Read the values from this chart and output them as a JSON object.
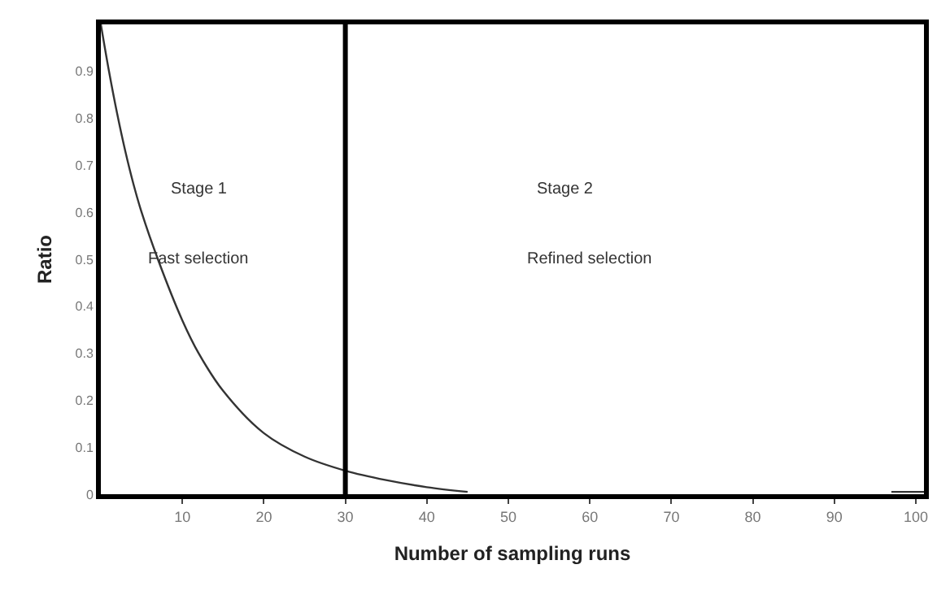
{
  "chart_data": {
    "type": "line",
    "xlabel": "Number of sampling runs",
    "ylabel": "Ratio",
    "x": [
      0,
      1,
      2,
      3,
      4,
      5,
      7,
      10,
      12,
      15,
      20,
      25,
      30,
      35,
      40,
      45,
      46,
      97,
      101
    ],
    "series": [
      {
        "color": "#333333",
        "values": [
          1.0,
          0.9,
          0.81,
          0.73,
          0.66,
          0.6,
          0.5,
          0.37,
          0.3,
          0.22,
          0.13,
          0.08,
          0.05,
          0.03,
          0.015,
          0.005,
          null,
          0.005,
          0.005
        ]
      }
    ],
    "xlim": [
      0,
      101
    ],
    "xticks": [
      10,
      20,
      30,
      40,
      50,
      60,
      70,
      80,
      90,
      100
    ],
    "ylim": [
      0,
      1
    ],
    "yticks": [
      0,
      0.1,
      0.2,
      0.3,
      0.4,
      0.5,
      0.6,
      0.7,
      0.8,
      0.9
    ],
    "ref_lines": [
      {
        "axis": "x",
        "value": 30,
        "color": "#000000"
      }
    ],
    "annotations": [
      "Stage 1",
      "Fast selection",
      "Stage 2",
      "Refined selection"
    ],
    "marker": "none",
    "line_style": "solid"
  }
}
